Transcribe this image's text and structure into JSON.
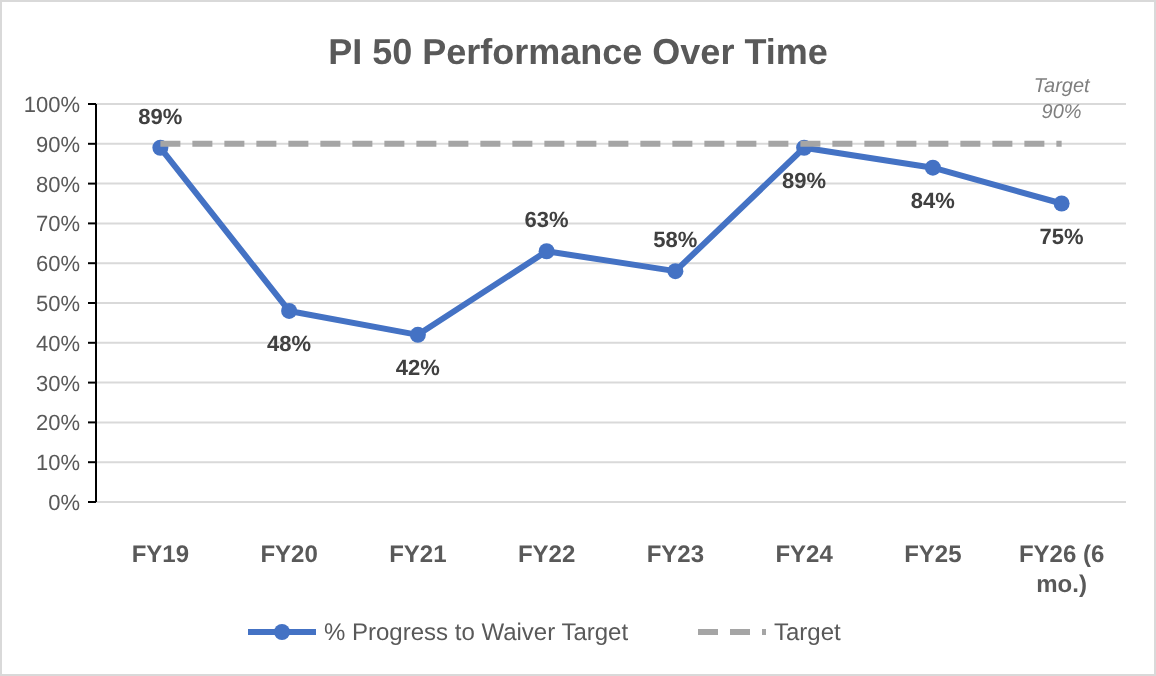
{
  "chart_data": {
    "type": "line",
    "title": "PI 50 Performance Over Time",
    "categories": [
      "FY19",
      "FY20",
      "FY21",
      "FY22",
      "FY23",
      "FY24",
      "FY25",
      "FY26 (6 mo.)"
    ],
    "series": [
      {
        "name": "% Progress to Waiver Target",
        "color": "#4472c4",
        "marker": "circle",
        "line_style": "solid",
        "values": [
          89,
          48,
          42,
          63,
          58,
          89,
          84,
          75
        ],
        "value_labels": [
          "89%",
          "48%",
          "42%",
          "63%",
          "58%",
          "89%",
          "84%",
          "75%"
        ]
      },
      {
        "name": "Target",
        "color": "#a5a5a5",
        "marker": "none",
        "line_style": "dashed",
        "values": [
          90,
          90,
          90,
          90,
          90,
          90,
          90,
          90
        ]
      }
    ],
    "annotations": [
      {
        "text": "Target\n90%",
        "x": "FY26 (6 mo.)",
        "y": 90
      }
    ],
    "ylim": [
      0,
      100
    ],
    "yticks": [
      {
        "value": 0,
        "label": "0%"
      },
      {
        "value": 10,
        "label": "10%"
      },
      {
        "value": 20,
        "label": "20%"
      },
      {
        "value": 30,
        "label": "30%"
      },
      {
        "value": 40,
        "label": "40%"
      },
      {
        "value": 50,
        "label": "50%"
      },
      {
        "value": 60,
        "label": "60%"
      },
      {
        "value": 70,
        "label": "70%"
      },
      {
        "value": 80,
        "label": "80%"
      },
      {
        "value": 90,
        "label": "90%"
      },
      {
        "value": 100,
        "label": "100%"
      }
    ],
    "grid": "y",
    "legend": "bottom"
  }
}
